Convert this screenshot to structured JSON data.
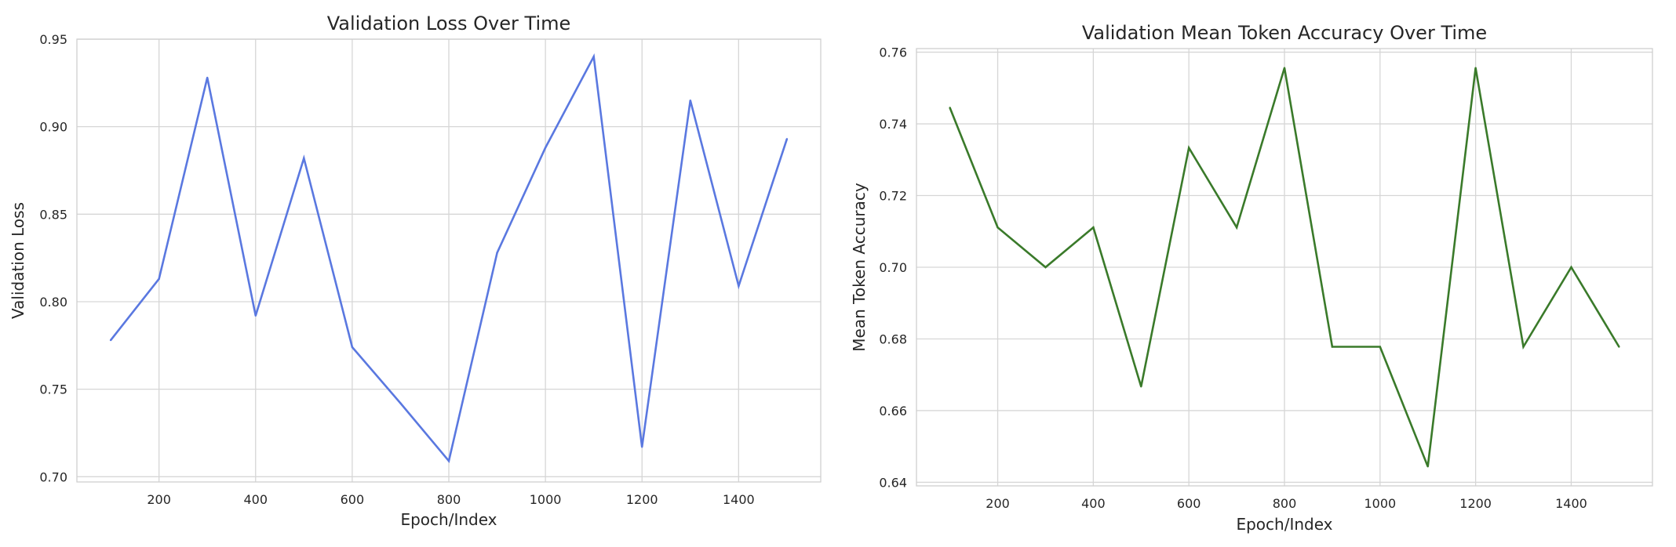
{
  "chart_data": [
    {
      "type": "line",
      "title": "Validation Loss Over Time",
      "xlabel": "Epoch/Index",
      "ylabel": "Validation Loss",
      "xlim": [
        30,
        1570
      ],
      "ylim": [
        0.697,
        0.95
      ],
      "xticks": [
        200,
        400,
        600,
        800,
        1000,
        1200,
        1400
      ],
      "yticks": [
        0.7,
        0.75,
        0.8,
        0.85,
        0.9,
        0.95
      ],
      "ytick_labels": [
        "0.70",
        "0.75",
        "0.80",
        "0.85",
        "0.90",
        "0.95"
      ],
      "grid": true,
      "color": "#5a78e0",
      "x": [
        100,
        200,
        300,
        400,
        500,
        600,
        700,
        800,
        900,
        1000,
        1100,
        1200,
        1300,
        1400,
        1500
      ],
      "y": [
        0.778,
        0.813,
        0.928,
        0.792,
        0.882,
        0.774,
        0.742,
        0.709,
        0.828,
        0.888,
        0.94,
        0.717,
        0.915,
        0.809,
        0.893
      ]
    },
    {
      "type": "line",
      "title": "Validation Mean Token Accuracy Over Time",
      "xlabel": "Epoch/Index",
      "ylabel": "Mean Token Accuracy",
      "xlim": [
        30,
        1570
      ],
      "ylim": [
        0.639,
        0.761
      ],
      "xticks": [
        200,
        400,
        600,
        800,
        1000,
        1200,
        1400
      ],
      "yticks": [
        0.64,
        0.66,
        0.68,
        0.7,
        0.72,
        0.74,
        0.76
      ],
      "ytick_labels": [
        "0.64",
        "0.66",
        "0.68",
        "0.70",
        "0.72",
        "0.74",
        "0.76"
      ],
      "grid": true,
      "color": "#3a7a2a",
      "x": [
        100,
        200,
        300,
        400,
        500,
        600,
        700,
        800,
        900,
        1000,
        1100,
        1200,
        1300,
        1400,
        1500
      ],
      "y": [
        0.7445,
        0.7111,
        0.7,
        0.7111,
        0.6667,
        0.7333,
        0.7111,
        0.7556,
        0.6778,
        0.6778,
        0.6444,
        0.7556,
        0.6778,
        0.7,
        0.6778
      ]
    }
  ]
}
